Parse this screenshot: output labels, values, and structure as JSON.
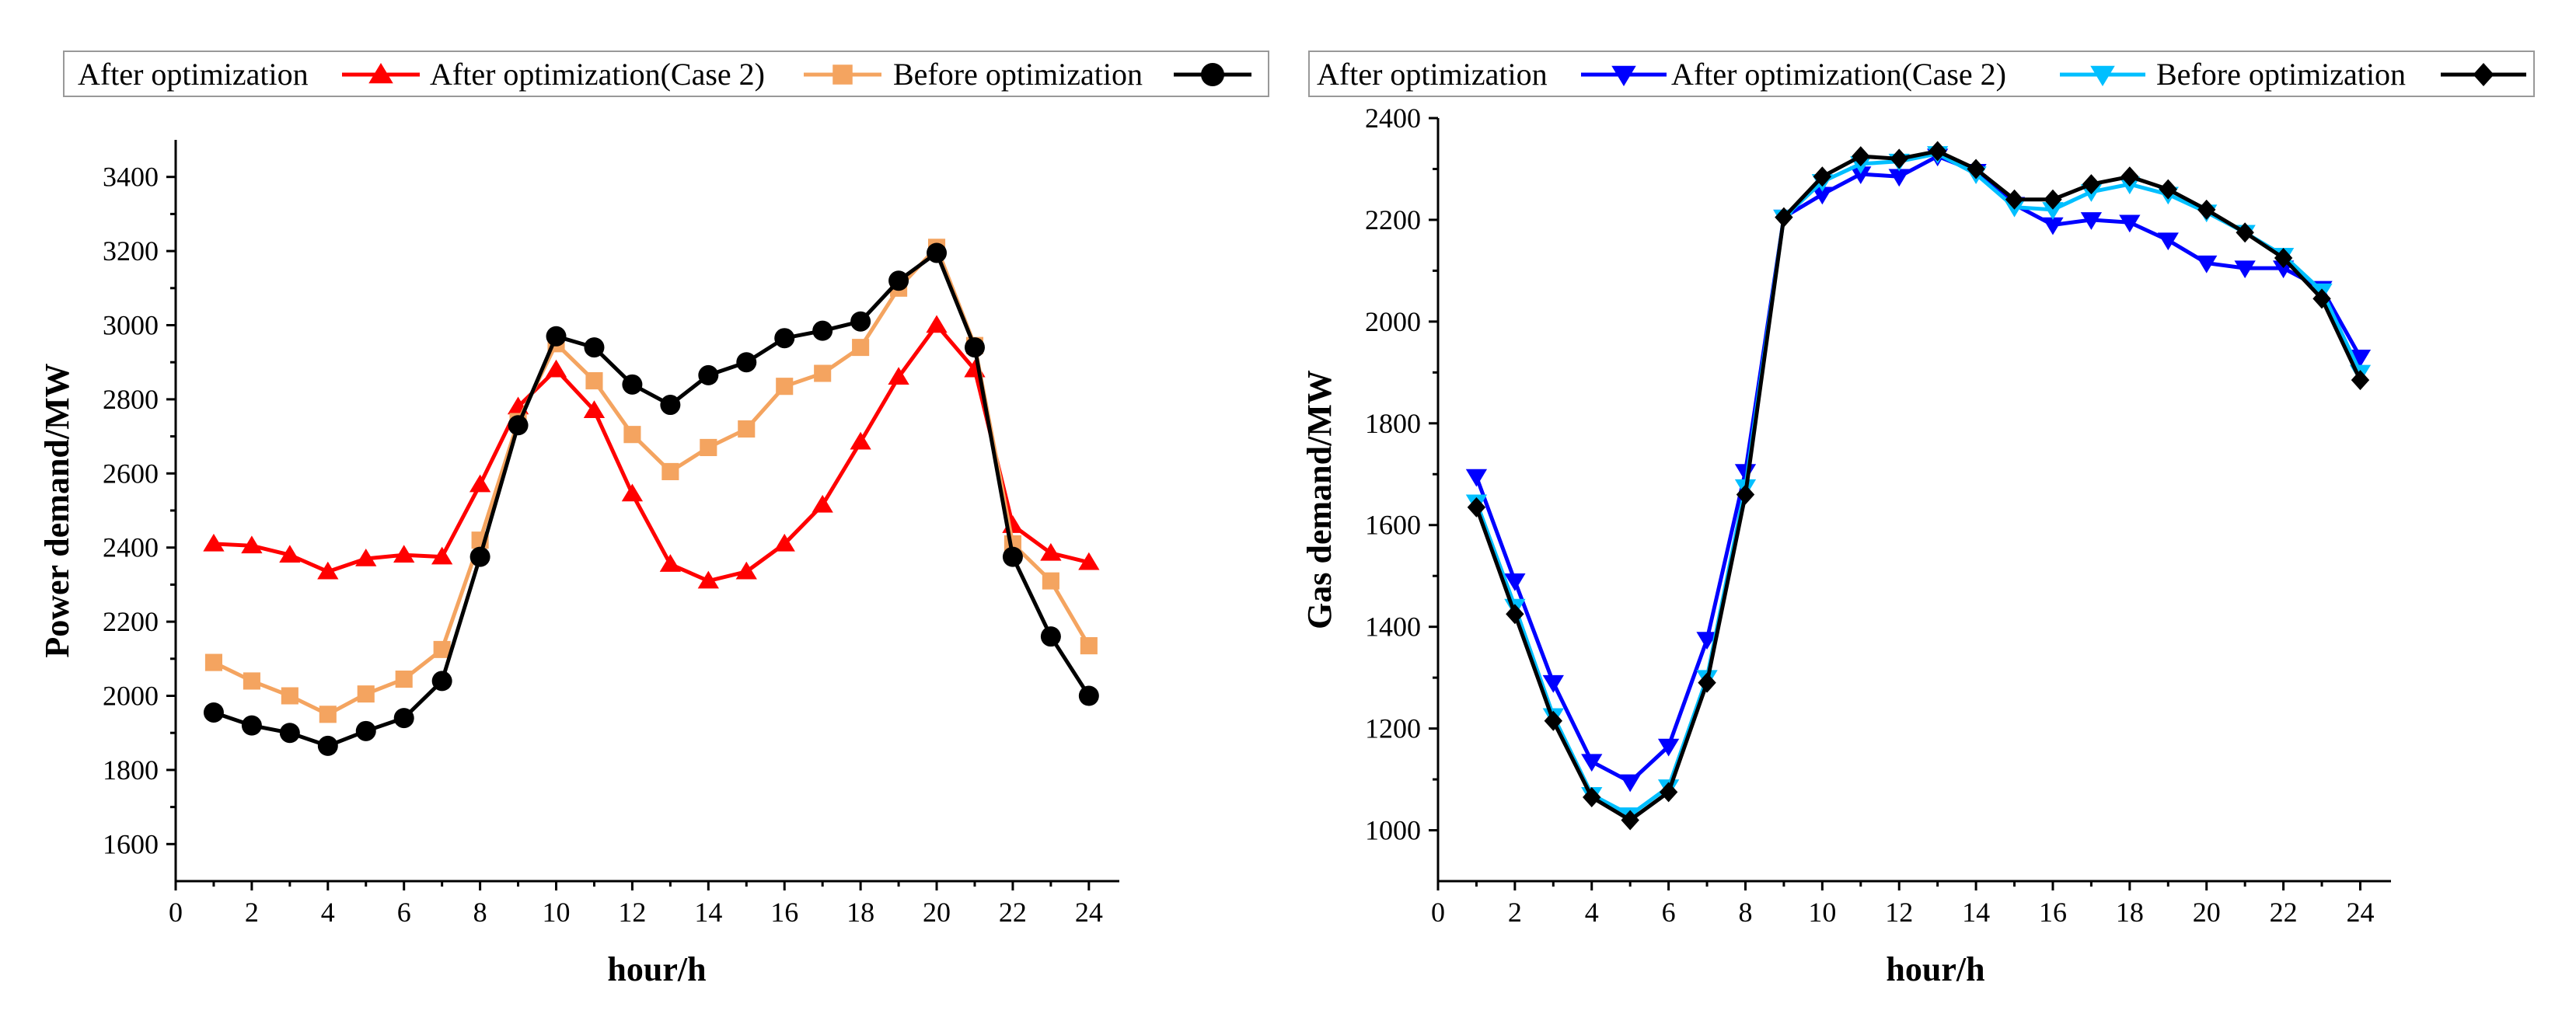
{
  "chart_data": [
    {
      "type": "line",
      "ylabel": "Power demand/MW",
      "xlabel": "hour/h",
      "xlim": [
        0,
        24.8
      ],
      "ylim": [
        1500,
        3500
      ],
      "xticks": [
        0,
        2,
        4,
        6,
        8,
        10,
        12,
        14,
        16,
        18,
        20,
        22,
        24
      ],
      "yticks": [
        1600,
        1800,
        2000,
        2200,
        2400,
        2600,
        2800,
        3000,
        3200,
        3400
      ],
      "legend_position": "top",
      "x": [
        1,
        2,
        3,
        4,
        5,
        6,
        7,
        8,
        9,
        10,
        11,
        12,
        13,
        14,
        15,
        16,
        17,
        18,
        19,
        20,
        21,
        22,
        23,
        24
      ],
      "series": [
        {
          "name": "After optimization",
          "color": "#ff0000",
          "marker": "triangle-up",
          "values": [
            2410,
            2405,
            2380,
            2335,
            2370,
            2380,
            2375,
            2570,
            2780,
            2880,
            2770,
            2545,
            2355,
            2310,
            2335,
            2410,
            2515,
            2685,
            2860,
            3000,
            2880,
            2460,
            2385,
            2360
          ]
        },
        {
          "name": "After optimization(Case 2)",
          "color": "#f4a460",
          "marker": "square",
          "values": [
            2090,
            2040,
            2000,
            1950,
            2005,
            2045,
            2125,
            2420,
            2740,
            2950,
            2850,
            2705,
            2605,
            2670,
            2720,
            2835,
            2870,
            2940,
            3100,
            3210,
            2945,
            2410,
            2310,
            2135
          ]
        },
        {
          "name": "Before optimization",
          "color": "#000000",
          "marker": "circle",
          "values": [
            1955,
            1920,
            1900,
            1865,
            1905,
            1940,
            2040,
            2375,
            2730,
            2970,
            2940,
            2840,
            2785,
            2865,
            2900,
            2965,
            2985,
            3010,
            3120,
            3195,
            2940,
            2375,
            2160,
            2000
          ]
        }
      ]
    },
    {
      "type": "line",
      "ylabel": "Gas demand/MW",
      "xlabel": "hour/h",
      "xlim": [
        0,
        24.8
      ],
      "ylim": [
        900,
        2400
      ],
      "xticks": [
        0,
        2,
        4,
        6,
        8,
        10,
        12,
        14,
        16,
        18,
        20,
        22,
        24
      ],
      "yticks": [
        1000,
        1200,
        1400,
        1600,
        1800,
        2000,
        2200,
        2400
      ],
      "legend_position": "top",
      "x": [
        1,
        2,
        3,
        4,
        5,
        6,
        7,
        8,
        9,
        10,
        11,
        12,
        13,
        14,
        15,
        16,
        17,
        18,
        19,
        20,
        21,
        22,
        23,
        24
      ],
      "series": [
        {
          "name": "After optimization",
          "color": "#0000ff",
          "marker": "triangle-down",
          "values": [
            1695,
            1490,
            1290,
            1135,
            1095,
            1165,
            1375,
            1705,
            2205,
            2250,
            2290,
            2285,
            2325,
            2295,
            2230,
            2190,
            2200,
            2195,
            2160,
            2115,
            2105,
            2105,
            2065,
            1930
          ]
        },
        {
          "name": "After optimization(Case 2)",
          "color": "#00bfff",
          "marker": "triangle-down",
          "values": [
            1645,
            1440,
            1225,
            1070,
            1030,
            1085,
            1300,
            1675,
            2205,
            2275,
            2310,
            2315,
            2330,
            2290,
            2225,
            2220,
            2255,
            2270,
            2250,
            2215,
            2175,
            2130,
            2060,
            1900
          ]
        },
        {
          "name": "Before optimization",
          "color": "#000000",
          "marker": "diamond",
          "values": [
            1635,
            1425,
            1215,
            1065,
            1020,
            1075,
            1290,
            1660,
            2205,
            2285,
            2325,
            2320,
            2335,
            2300,
            2240,
            2240,
            2270,
            2285,
            2260,
            2220,
            2175,
            2125,
            2045,
            1885
          ]
        }
      ]
    }
  ]
}
